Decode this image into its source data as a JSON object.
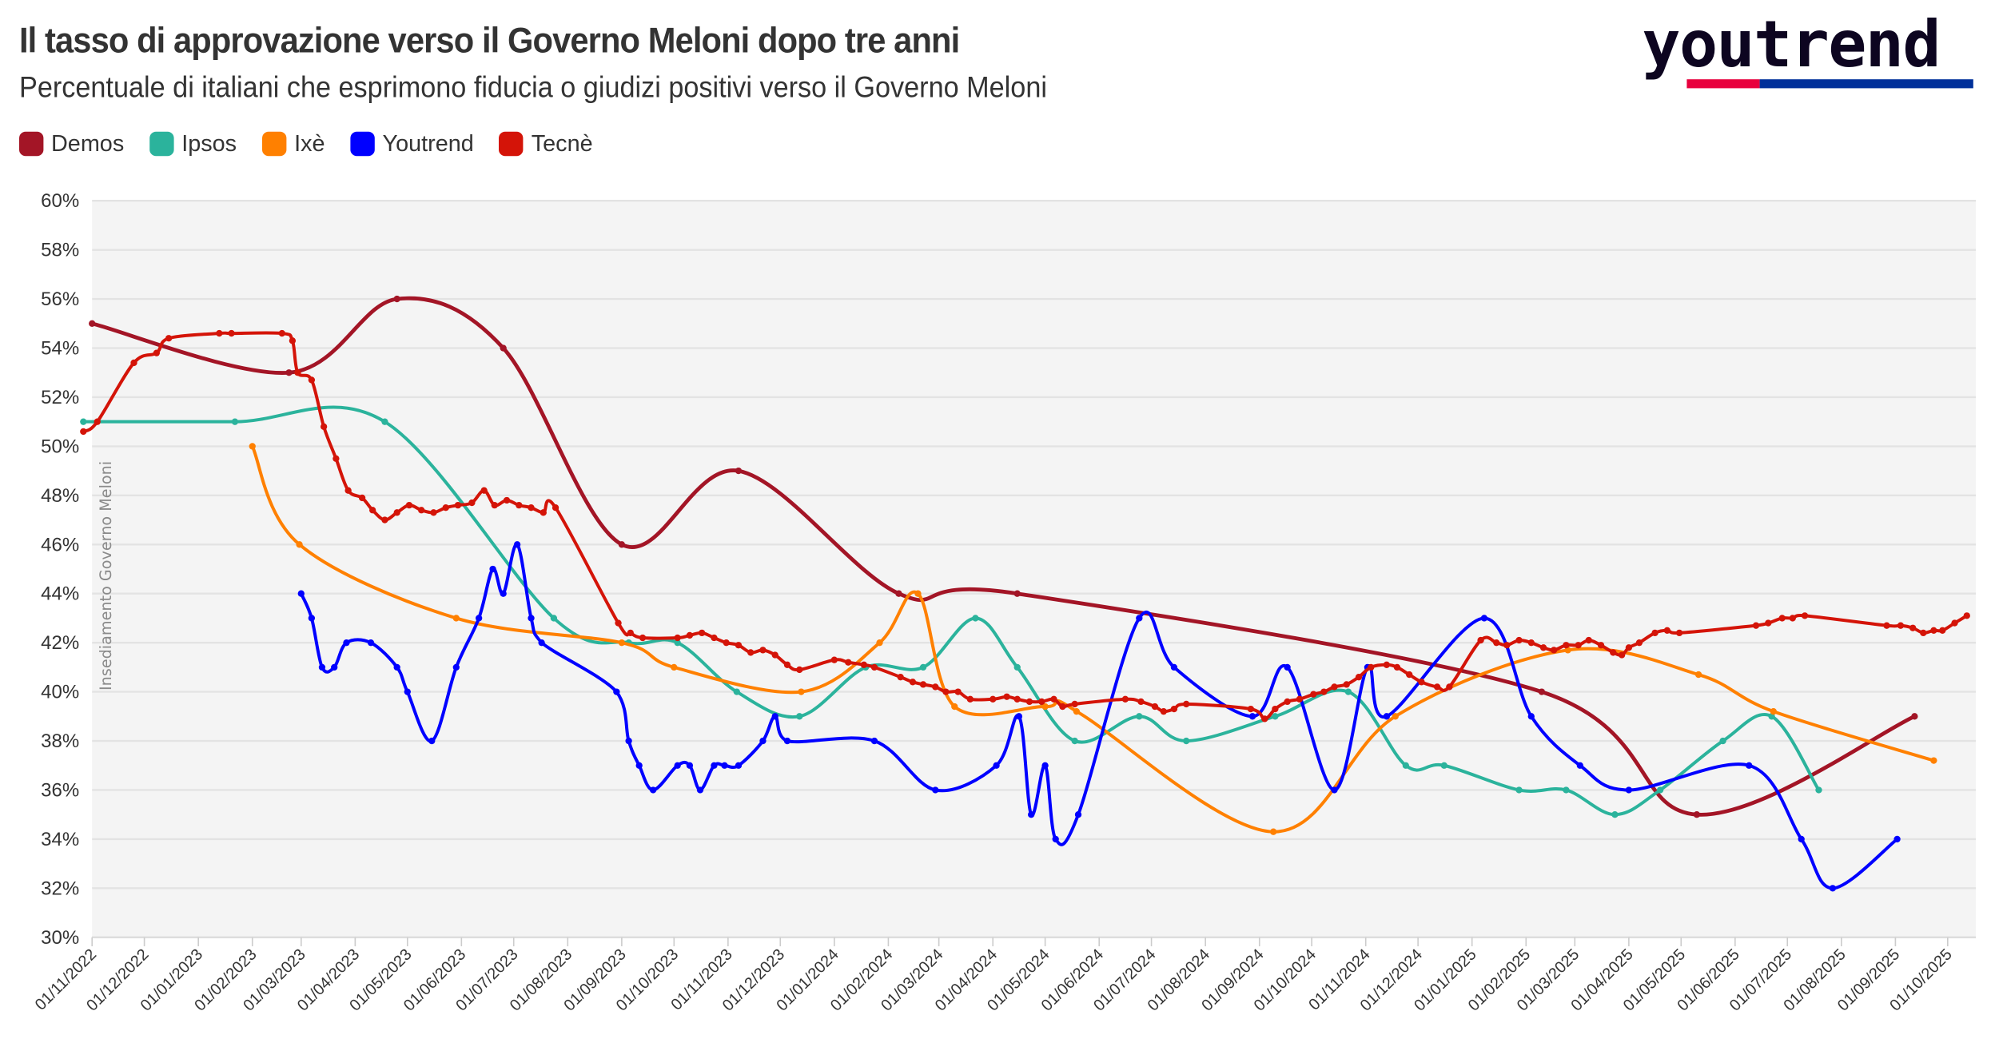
{
  "header": {
    "title": "Il tasso di approvazione verso il Governo Meloni dopo tre anni",
    "subtitle": "Percentuale di italiani che esprimono fiducia o giudizi positivi verso il Governo Meloni",
    "logo_text": "youtrend",
    "logo_colors": [
      "#e8003d",
      "#00309a"
    ]
  },
  "chart_data": {
    "type": "line",
    "title": "Il tasso di approvazione verso il Governo Meloni dopo tre anni",
    "subtitle": "Percentuale di italiani che esprimono fiducia o giudizi positivi verso il Governo Meloni",
    "xlabel": "",
    "ylabel": "",
    "ylim": [
      30,
      60
    ],
    "xlim": [
      "2022-11-01",
      "2025-10-01"
    ],
    "grid": true,
    "legend": "top-left",
    "yticks": [
      "30%",
      "32%",
      "34%",
      "36%",
      "38%",
      "40%",
      "42%",
      "44%",
      "46%",
      "48%",
      "50%",
      "52%",
      "54%",
      "56%",
      "58%",
      "60%"
    ],
    "xticks": [
      "01/11/2022",
      "01/12/2022",
      "01/01/2023",
      "01/02/2023",
      "01/03/2023",
      "01/04/2023",
      "01/05/2023",
      "01/06/2023",
      "01/07/2023",
      "01/08/2023",
      "01/09/2023",
      "01/10/2023",
      "01/11/2023",
      "01/12/2023",
      "01/01/2024",
      "01/02/2024",
      "01/03/2024",
      "01/04/2024",
      "01/05/2024",
      "01/06/2024",
      "01/07/2024",
      "01/08/2024",
      "01/09/2024",
      "01/10/2024",
      "01/11/2024",
      "01/12/2024",
      "01/01/2025",
      "01/02/2025",
      "01/03/2025",
      "01/04/2025",
      "01/05/2025",
      "01/06/2025",
      "01/07/2025",
      "01/08/2025",
      "01/09/2025",
      "01/10/2025"
    ],
    "annotation": "Insediamento Governo Meloni",
    "series": [
      {
        "name": "Demos",
        "color": "#a31526",
        "points": [
          [
            "2022-11-01",
            55
          ],
          [
            "2023-02-22",
            53
          ],
          [
            "2023-04-25",
            56
          ],
          [
            "2023-06-25",
            54
          ],
          [
            "2023-09-01",
            46
          ],
          [
            "2023-11-07",
            49
          ],
          [
            "2024-02-07",
            44
          ],
          [
            "2024-04-15",
            44
          ],
          [
            "2025-02-10",
            40
          ],
          [
            "2025-05-10",
            35
          ],
          [
            "2025-09-12",
            39
          ]
        ]
      },
      {
        "name": "Ipsos",
        "color": "#2bb39c",
        "points": [
          [
            "2022-10-27",
            51
          ],
          [
            "2023-01-22",
            51
          ],
          [
            "2023-04-18",
            51
          ],
          [
            "2023-07-24",
            43
          ],
          [
            "2023-09-05",
            42
          ],
          [
            "2023-10-03",
            42
          ],
          [
            "2023-11-06",
            40
          ],
          [
            "2023-12-12",
            39
          ],
          [
            "2024-01-19",
            41
          ],
          [
            "2024-02-21",
            41
          ],
          [
            "2024-03-22",
            43
          ],
          [
            "2024-04-15",
            41
          ],
          [
            "2024-05-18",
            38
          ],
          [
            "2024-06-24",
            39
          ],
          [
            "2024-07-21",
            38
          ],
          [
            "2024-09-10",
            39
          ],
          [
            "2024-10-22",
            40
          ],
          [
            "2024-11-24",
            37
          ],
          [
            "2024-12-16",
            37
          ],
          [
            "2025-01-28",
            36
          ],
          [
            "2025-02-24",
            36
          ],
          [
            "2025-03-24",
            35
          ],
          [
            "2025-04-19",
            36
          ],
          [
            "2025-05-25",
            38
          ],
          [
            "2025-06-22",
            39
          ],
          [
            "2025-07-19",
            36
          ]
        ]
      },
      {
        "name": "Ixè",
        "color": "#ff8000",
        "points": [
          [
            "2023-02-01",
            50
          ],
          [
            "2023-02-28",
            46
          ],
          [
            "2023-05-29",
            43
          ],
          [
            "2023-09-01",
            42
          ],
          [
            "2023-10-01",
            41
          ],
          [
            "2023-12-13",
            40
          ],
          [
            "2024-01-27",
            42
          ],
          [
            "2024-02-18",
            44
          ],
          [
            "2024-03-10",
            39.4
          ],
          [
            "2024-05-01",
            39.4
          ],
          [
            "2024-05-19",
            39.2
          ],
          [
            "2024-09-09",
            34.3
          ],
          [
            "2024-11-18",
            39
          ],
          [
            "2025-02-25",
            41.7
          ],
          [
            "2025-05-11",
            40.7
          ],
          [
            "2025-06-23",
            39.2
          ],
          [
            "2025-09-23",
            37.2
          ]
        ]
      },
      {
        "name": "Youtrend",
        "color": "#0000ff",
        "points": [
          [
            "2023-03-01",
            44
          ],
          [
            "2023-03-07",
            43
          ],
          [
            "2023-03-13",
            41
          ],
          [
            "2023-03-20",
            41
          ],
          [
            "2023-03-27",
            42
          ],
          [
            "2023-04-10",
            42
          ],
          [
            "2023-04-25",
            41
          ],
          [
            "2023-05-01",
            40
          ],
          [
            "2023-05-15",
            38
          ],
          [
            "2023-05-29",
            41
          ],
          [
            "2023-06-11",
            43
          ],
          [
            "2023-06-19",
            45
          ],
          [
            "2023-06-25",
            44
          ],
          [
            "2023-07-03",
            46
          ],
          [
            "2023-07-11",
            43
          ],
          [
            "2023-07-17",
            42
          ],
          [
            "2023-08-29",
            40
          ],
          [
            "2023-09-05",
            38
          ],
          [
            "2023-09-11",
            37
          ],
          [
            "2023-09-19",
            36
          ],
          [
            "2023-10-03",
            37
          ],
          [
            "2023-10-10",
            37
          ],
          [
            "2023-10-16",
            36
          ],
          [
            "2023-10-24",
            37
          ],
          [
            "2023-10-30",
            37
          ],
          [
            "2023-11-07",
            37
          ],
          [
            "2023-11-21",
            38
          ],
          [
            "2023-11-28",
            39
          ],
          [
            "2023-12-05",
            38
          ],
          [
            "2024-01-24",
            38
          ],
          [
            "2024-02-28",
            36
          ],
          [
            "2024-04-03",
            37
          ],
          [
            "2024-04-16",
            39
          ],
          [
            "2024-04-23",
            35
          ],
          [
            "2024-05-01",
            37
          ],
          [
            "2024-05-07",
            34
          ],
          [
            "2024-05-20",
            35
          ],
          [
            "2024-06-24",
            43
          ],
          [
            "2024-07-14",
            41
          ],
          [
            "2024-08-28",
            39
          ],
          [
            "2024-09-17",
            41
          ],
          [
            "2024-10-14",
            36
          ],
          [
            "2024-11-02",
            41
          ],
          [
            "2024-11-13",
            39
          ],
          [
            "2025-01-08",
            43
          ],
          [
            "2025-02-04",
            39
          ],
          [
            "2025-03-04",
            37
          ],
          [
            "2025-04-01",
            36
          ],
          [
            "2025-06-09",
            37
          ],
          [
            "2025-07-09",
            34
          ],
          [
            "2025-07-27",
            32
          ],
          [
            "2025-09-02",
            34
          ]
        ]
      },
      {
        "name": "Tecnè",
        "color": "#d41408",
        "points": [
          [
            "2022-10-27",
            50.6
          ],
          [
            "2022-11-04",
            51.0
          ],
          [
            "2022-11-25",
            53.4
          ],
          [
            "2022-12-08",
            53.8
          ],
          [
            "2022-12-15",
            54.4
          ],
          [
            "2023-01-13",
            54.6
          ],
          [
            "2023-01-20",
            54.6
          ],
          [
            "2023-02-18",
            54.6
          ],
          [
            "2023-02-24",
            54.3
          ],
          [
            "2023-02-27",
            53.0
          ],
          [
            "2023-03-07",
            52.7
          ],
          [
            "2023-03-14",
            50.8
          ],
          [
            "2023-03-21",
            49.5
          ],
          [
            "2023-03-28",
            48.2
          ],
          [
            "2023-04-05",
            47.9
          ],
          [
            "2023-04-11",
            47.4
          ],
          [
            "2023-04-18",
            47.0
          ],
          [
            "2023-04-25",
            47.3
          ],
          [
            "2023-05-02",
            47.6
          ],
          [
            "2023-05-09",
            47.4
          ],
          [
            "2023-05-16",
            47.3
          ],
          [
            "2023-05-23",
            47.5
          ],
          [
            "2023-05-30",
            47.6
          ],
          [
            "2023-06-07",
            47.7
          ],
          [
            "2023-06-14",
            48.2
          ],
          [
            "2023-06-20",
            47.6
          ],
          [
            "2023-06-27",
            47.8
          ],
          [
            "2023-07-04",
            47.6
          ],
          [
            "2023-07-11",
            47.5
          ],
          [
            "2023-07-18",
            47.3
          ],
          [
            "2023-07-25",
            47.5
          ],
          [
            "2023-08-30",
            42.8
          ],
          [
            "2023-09-06",
            42.4
          ],
          [
            "2023-09-13",
            42.2
          ],
          [
            "2023-10-03",
            42.2
          ],
          [
            "2023-10-10",
            42.3
          ],
          [
            "2023-10-17",
            42.4
          ],
          [
            "2023-10-24",
            42.2
          ],
          [
            "2023-10-31",
            42.0
          ],
          [
            "2023-11-07",
            41.9
          ],
          [
            "2023-11-14",
            41.6
          ],
          [
            "2023-11-21",
            41.7
          ],
          [
            "2023-11-28",
            41.5
          ],
          [
            "2023-12-05",
            41.1
          ],
          [
            "2023-12-12",
            40.9
          ],
          [
            "2024-01-01",
            41.3
          ],
          [
            "2024-01-09",
            41.2
          ],
          [
            "2024-01-18",
            41.1
          ],
          [
            "2024-01-24",
            41.0
          ],
          [
            "2024-02-08",
            40.6
          ],
          [
            "2024-02-15",
            40.4
          ],
          [
            "2024-02-21",
            40.3
          ],
          [
            "2024-02-28",
            40.2
          ],
          [
            "2024-03-05",
            40.0
          ],
          [
            "2024-03-12",
            40.0
          ],
          [
            "2024-03-19",
            39.7
          ],
          [
            "2024-04-01",
            39.7
          ],
          [
            "2024-04-09",
            39.8
          ],
          [
            "2024-04-15",
            39.7
          ],
          [
            "2024-04-22",
            39.6
          ],
          [
            "2024-04-29",
            39.6
          ],
          [
            "2024-05-06",
            39.7
          ],
          [
            "2024-05-11",
            39.4
          ],
          [
            "2024-05-18",
            39.5
          ],
          [
            "2024-06-16",
            39.7
          ],
          [
            "2024-06-25",
            39.6
          ],
          [
            "2024-07-03",
            39.4
          ],
          [
            "2024-07-08",
            39.2
          ],
          [
            "2024-07-14",
            39.3
          ],
          [
            "2024-07-21",
            39.5
          ],
          [
            "2024-08-27",
            39.3
          ],
          [
            "2024-09-04",
            38.9
          ],
          [
            "2024-09-10",
            39.3
          ],
          [
            "2024-09-17",
            39.6
          ],
          [
            "2024-09-24",
            39.7
          ],
          [
            "2024-10-02",
            39.9
          ],
          [
            "2024-10-08",
            40.0
          ],
          [
            "2024-10-14",
            40.2
          ],
          [
            "2024-10-21",
            40.3
          ],
          [
            "2024-10-28",
            40.6
          ],
          [
            "2024-11-04",
            41.0
          ],
          [
            "2024-11-13",
            41.1
          ],
          [
            "2024-11-19",
            41.0
          ],
          [
            "2024-11-26",
            40.7
          ],
          [
            "2024-12-03",
            40.4
          ],
          [
            "2024-12-12",
            40.2
          ],
          [
            "2024-12-19",
            40.2
          ],
          [
            "2025-01-06",
            42.1
          ],
          [
            "2025-01-15",
            42.0
          ],
          [
            "2025-01-21",
            41.9
          ],
          [
            "2025-01-28",
            42.1
          ],
          [
            "2025-02-04",
            42.0
          ],
          [
            "2025-02-11",
            41.8
          ],
          [
            "2025-02-17",
            41.7
          ],
          [
            "2025-02-24",
            41.9
          ],
          [
            "2025-03-03",
            41.9
          ],
          [
            "2025-03-09",
            42.1
          ],
          [
            "2025-03-16",
            41.9
          ],
          [
            "2025-03-23",
            41.6
          ],
          [
            "2025-03-28",
            41.5
          ],
          [
            "2025-04-01",
            41.8
          ],
          [
            "2025-04-07",
            42.0
          ],
          [
            "2025-04-16",
            42.4
          ],
          [
            "2025-04-23",
            42.5
          ],
          [
            "2025-04-30",
            42.4
          ],
          [
            "2025-06-13",
            42.7
          ],
          [
            "2025-06-20",
            42.8
          ],
          [
            "2025-06-28",
            43.0
          ],
          [
            "2025-07-04",
            43.0
          ],
          [
            "2025-07-11",
            43.1
          ],
          [
            "2025-08-27",
            42.7
          ],
          [
            "2025-09-04",
            42.7
          ],
          [
            "2025-09-11",
            42.6
          ],
          [
            "2025-09-17",
            42.4
          ],
          [
            "2025-09-23",
            42.5
          ],
          [
            "2025-09-28",
            42.5
          ],
          [
            "2025-10-05",
            42.8
          ],
          [
            "2025-10-12",
            43.1
          ]
        ]
      }
    ]
  }
}
